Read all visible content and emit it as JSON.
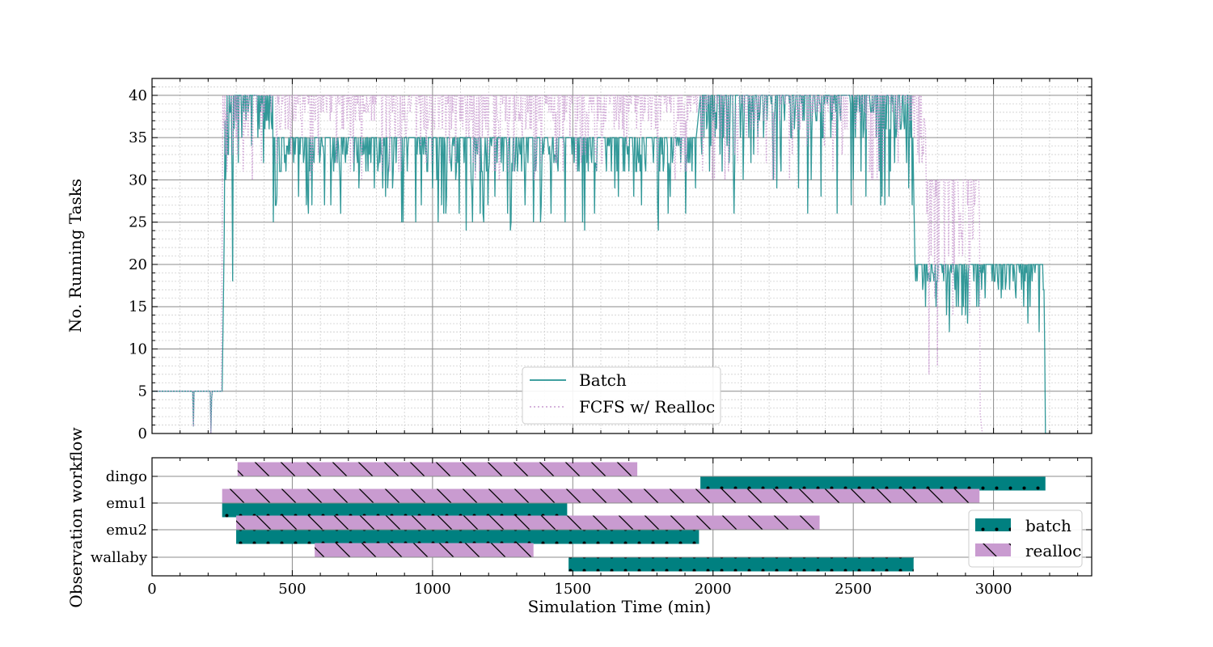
{
  "chart_data": [
    {
      "type": "line",
      "xlabel": "",
      "ylabel": "No. Running Tasks",
      "xlim": [
        0,
        3350
      ],
      "ylim": [
        0,
        42
      ],
      "xticks": [
        0,
        500,
        1000,
        1500,
        2000,
        2500,
        3000
      ],
      "yticks": [
        0,
        5,
        10,
        15,
        20,
        25,
        30,
        35,
        40
      ],
      "grid": true,
      "legend_position": "lower-center",
      "series": [
        {
          "name": "Batch",
          "color": "#008080",
          "style": "solid",
          "points": [
            [
              0,
              5
            ],
            [
              145,
              5
            ],
            [
              148,
              0
            ],
            [
              150,
              5
            ],
            [
              208,
              5
            ],
            [
              210,
              0
            ],
            [
              213,
              5
            ],
            [
              250,
              5
            ],
            [
              258,
              25
            ],
            [
              290,
              25
            ],
            [
              300,
              40
            ],
            [
              430,
              40
            ],
            [
              432,
              35
            ],
            [
              1490,
              35
            ],
            [
              1495,
              8
            ],
            [
              1505,
              35
            ],
            [
              1940,
              35
            ],
            [
              1955,
              40
            ],
            [
              2710,
              40
            ],
            [
              2720,
              20
            ],
            [
              3180,
              20
            ],
            [
              3185,
              0
            ],
            [
              3200,
              0
            ]
          ],
          "noise": [
            {
              "from": 258,
              "to": 300,
              "low": 15,
              "high": 40
            },
            {
              "from": 300,
              "to": 430,
              "low": 30,
              "high": 40
            },
            {
              "from": 430,
              "to": 1940,
              "low": 24,
              "high": 35
            },
            {
              "from": 1955,
              "to": 2710,
              "low": 26,
              "high": 40
            },
            {
              "from": 2720,
              "to": 3180,
              "low": 12,
              "high": 20
            }
          ]
        },
        {
          "name": "FCFS w/ Realloc",
          "color": "#c99bd0",
          "style": "dotted",
          "points": [
            [
              0,
              5
            ],
            [
              145,
              5
            ],
            [
              148,
              0
            ],
            [
              150,
              5
            ],
            [
              208,
              5
            ],
            [
              210,
              0
            ],
            [
              213,
              5
            ],
            [
              248,
              5
            ],
            [
              252,
              40
            ],
            [
              2750,
              38
            ],
            [
              2780,
              30
            ],
            [
              2850,
              18
            ],
            [
              2900,
              8
            ],
            [
              2950,
              3
            ],
            [
              2960,
              0
            ]
          ],
          "noise": [
            {
              "from": 252,
              "to": 2750,
              "low": 30,
              "high": 40
            },
            {
              "from": 2760,
              "to": 2950,
              "low": 3,
              "high": 30
            }
          ]
        }
      ]
    },
    {
      "type": "gantt",
      "xlabel": "Simulation Time (min)",
      "ylabel": "Observation workflow",
      "xlim": [
        0,
        3350
      ],
      "xticks": [
        0,
        500,
        1000,
        1500,
        2000,
        2500,
        3000
      ],
      "categories": [
        "dingo",
        "emu1",
        "emu2",
        "wallaby"
      ],
      "legend_position": "lower-right",
      "series": [
        {
          "name": "batch",
          "color": "#008080",
          "pattern": "dots",
          "bars": [
            {
              "workflow": "dingo",
              "start": 1955,
              "end": 3185
            },
            {
              "workflow": "emu1",
              "start": 250,
              "end": 1480
            },
            {
              "workflow": "emu2",
              "start": 300,
              "end": 1950
            },
            {
              "workflow": "wallaby",
              "start": 1485,
              "end": 2715
            }
          ]
        },
        {
          "name": "realloc",
          "color": "#c99bd0",
          "pattern": "hatch",
          "bars": [
            {
              "workflow": "dingo",
              "start": 305,
              "end": 1730
            },
            {
              "workflow": "emu1",
              "start": 250,
              "end": 2950
            },
            {
              "workflow": "emu2",
              "start": 300,
              "end": 2380
            },
            {
              "workflow": "wallaby",
              "start": 580,
              "end": 1360
            }
          ]
        }
      ]
    }
  ]
}
